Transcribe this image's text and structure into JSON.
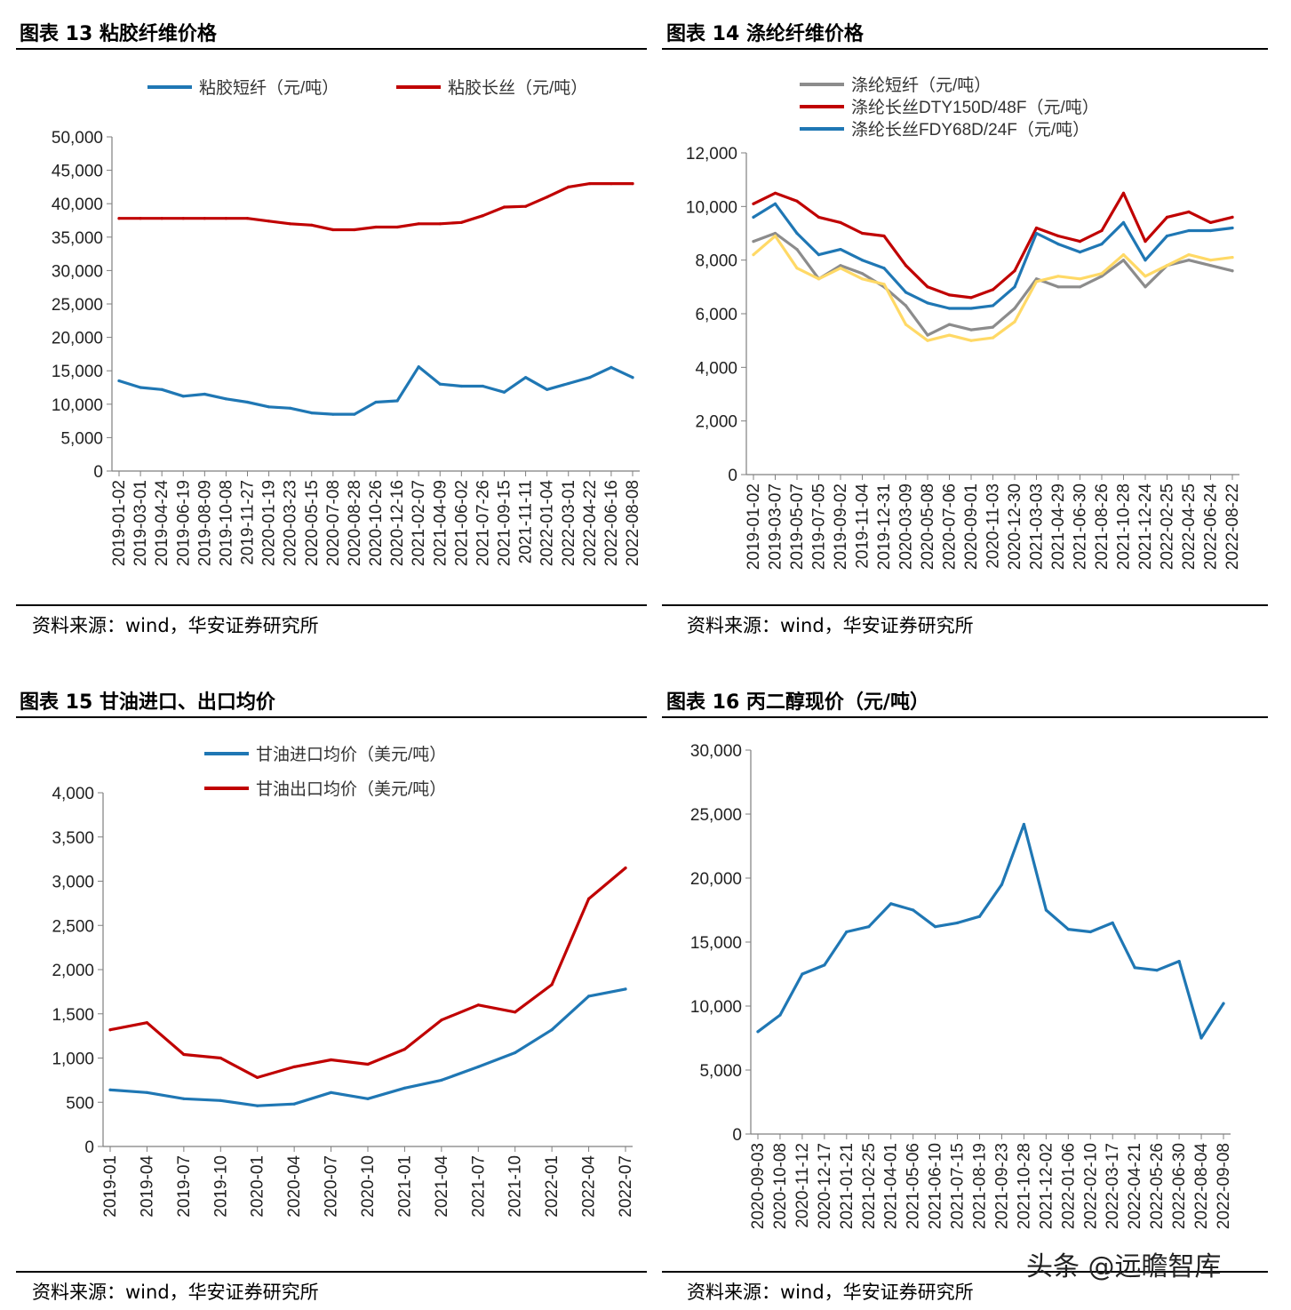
{
  "chart_data": [
    {
      "id": "c13",
      "type": "line",
      "title": "图表 13 粘胶纤维价格",
      "source": "资料来源：wind，华安证券研究所",
      "ylim": [
        0,
        50000
      ],
      "yticks": [
        "0",
        "5,000",
        "10,000",
        "15,000",
        "20,000",
        "25,000",
        "30,000",
        "35,000",
        "40,000",
        "45,000",
        "50,000"
      ],
      "categories": [
        "2019-01-02",
        "2019-03-01",
        "2019-04-24",
        "2019-06-19",
        "2019-08-09",
        "2019-10-08",
        "2019-11-27",
        "2020-01-19",
        "2020-03-23",
        "2020-05-15",
        "2020-07-08",
        "2020-08-28",
        "2020-10-26",
        "2020-12-16",
        "2021-02-07",
        "2021-04-09",
        "2021-06-02",
        "2021-07-26",
        "2021-09-15",
        "2021-11-11",
        "2022-01-04",
        "2022-03-01",
        "2022-04-22",
        "2022-06-16",
        "2022-08-08"
      ],
      "series": [
        {
          "name": "粘胶短纤（元/吨）",
          "color": "#1F77B4",
          "values": [
            13500,
            12500,
            12200,
            11200,
            11500,
            10800,
            10300,
            9600,
            9400,
            8700,
            8500,
            8500,
            10300,
            10500,
            15600,
            13000,
            12700,
            12700,
            11800,
            14000,
            12200,
            13100,
            14000,
            15500,
            14000
          ]
        },
        {
          "name": "粘胶长丝（元/吨）",
          "color": "#C00000",
          "values": [
            37800,
            37800,
            37800,
            37800,
            37800,
            37800,
            37800,
            37400,
            37000,
            36800,
            36100,
            36100,
            36500,
            36500,
            37000,
            37000,
            37200,
            38200,
            39500,
            39600,
            41000,
            42500,
            43000,
            43000,
            43000
          ]
        }
      ]
    },
    {
      "id": "c14",
      "type": "line",
      "title": "图表 14 涤纶纤维价格",
      "source": "资料来源：wind，华安证券研究所",
      "ylim": [
        0,
        12000
      ],
      "yticks": [
        "0",
        "2,000",
        "4,000",
        "6,000",
        "8,000",
        "10,000",
        "12,000"
      ],
      "categories": [
        "2019-01-02",
        "2019-03-07",
        "2019-05-07",
        "2019-07-05",
        "2019-09-02",
        "2019-11-04",
        "2019-12-31",
        "2020-03-09",
        "2020-05-08",
        "2020-07-06",
        "2020-09-01",
        "2020-11-03",
        "2020-12-30",
        "2021-03-03",
        "2021-04-29",
        "2021-06-30",
        "2021-08-26",
        "2021-10-28",
        "2021-12-24",
        "2022-02-25",
        "2022-04-25",
        "2022-06-24",
        "2022-08-22"
      ],
      "series": [
        {
          "name": "涤纶短纤（元/吨）",
          "color": "#8C8C8C",
          "values": [
            8700,
            9000,
            8400,
            7300,
            7800,
            7500,
            7000,
            6300,
            5200,
            5600,
            5400,
            5500,
            6200,
            7300,
            7000,
            7000,
            7400,
            8000,
            7000,
            7800,
            8000,
            7800,
            7600
          ]
        },
        {
          "name": "涤纶长丝DTY150D/48F（元/吨）",
          "color": "#C00000",
          "values": [
            10100,
            10500,
            10200,
            9600,
            9400,
            9000,
            8900,
            7800,
            7000,
            6700,
            6600,
            6900,
            7600,
            9200,
            8900,
            8700,
            9100,
            10500,
            8700,
            9600,
            9800,
            9400,
            9600
          ]
        },
        {
          "name": "涤纶长丝FDY68D/24F（元/吨）",
          "color": "#1F77B4",
          "values": [
            9600,
            10100,
            9000,
            8200,
            8400,
            8000,
            7700,
            6800,
            6400,
            6200,
            6200,
            6300,
            7000,
            9000,
            8600,
            8300,
            8600,
            9400,
            8000,
            8900,
            9100,
            9100,
            9200
          ]
        },
        {
          "name": "",
          "color": "#FFD966",
          "values": [
            8200,
            8900,
            7700,
            7300,
            7700,
            7300,
            7100,
            5600,
            5000,
            5200,
            5000,
            5100,
            5700,
            7200,
            7400,
            7300,
            7500,
            8200,
            7400,
            7800,
            8200,
            8000,
            8100
          ]
        }
      ]
    },
    {
      "id": "c15",
      "type": "line",
      "title": "图表 15 甘油进口、出口均价",
      "source": "资料来源：wind，华安证券研究所",
      "ylim": [
        0,
        4000
      ],
      "yticks": [
        "0",
        "500",
        "1,000",
        "1,500",
        "2,000",
        "2,500",
        "3,000",
        "3,500",
        "4,000"
      ],
      "categories": [
        "2019-01",
        "2019-04",
        "2019-07",
        "2019-10",
        "2020-01",
        "2020-04",
        "2020-07",
        "2020-10",
        "2021-01",
        "2021-04",
        "2021-07",
        "2021-10",
        "2022-01",
        "2022-04",
        "2022-07"
      ],
      "series": [
        {
          "name": "甘油进口均价（美元/吨）",
          "color": "#1F77B4",
          "values": [
            640,
            610,
            540,
            520,
            460,
            480,
            610,
            540,
            660,
            750,
            900,
            1060,
            1320,
            1700,
            1780
          ]
        },
        {
          "name": "甘油出口均价（美元/吨）",
          "color": "#C00000",
          "values": [
            1320,
            1400,
            1040,
            1000,
            780,
            900,
            980,
            930,
            1100,
            1430,
            1600,
            1520,
            1830,
            2800,
            3150
          ]
        }
      ]
    },
    {
      "id": "c16",
      "type": "line",
      "title": "图表 16 丙二醇现价（元/吨）",
      "source": "资料来源：wind，华安证券研究所",
      "ylim": [
        0,
        30000
      ],
      "yticks": [
        "0",
        "5,000",
        "10,000",
        "15,000",
        "20,000",
        "25,000",
        "30,000"
      ],
      "categories": [
        "2020-09-03",
        "2020-10-08",
        "2020-11-12",
        "2020-12-17",
        "2021-01-21",
        "2021-02-25",
        "2021-04-01",
        "2021-05-06",
        "2021-06-10",
        "2021-07-15",
        "2021-08-19",
        "2021-09-23",
        "2021-10-28",
        "2021-12-02",
        "2022-01-06",
        "2022-02-10",
        "2022-03-17",
        "2022-04-21",
        "2022-05-26",
        "2022-06-30",
        "2022-08-04",
        "2022-09-08"
      ],
      "series": [
        {
          "name": "丙二醇现价",
          "color": "#1F77B4",
          "values": [
            8000,
            9300,
            12500,
            13200,
            15800,
            16200,
            18000,
            17500,
            16200,
            16500,
            17000,
            19500,
            24200,
            17500,
            16000,
            15800,
            16500,
            13000,
            12800,
            13500,
            7500,
            10200
          ]
        }
      ]
    }
  ],
  "watermark": "头条 @远瞻智库"
}
